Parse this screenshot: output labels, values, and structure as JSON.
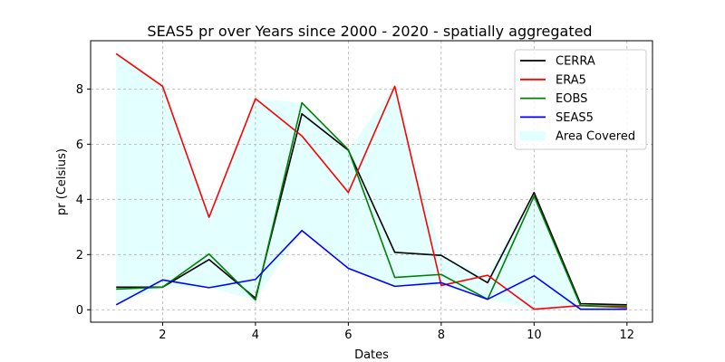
{
  "chart_data": {
    "type": "line",
    "title": "SEAS5 pr over Years since 2000 - 2020 - spatially aggregated",
    "xlabel": "Dates",
    "ylabel": "pr (Celsius)",
    "x": [
      1,
      2,
      3,
      4,
      5,
      6,
      7,
      8,
      9,
      10,
      11,
      12
    ],
    "xlim": [
      0.45,
      12.55
    ],
    "ylim": [
      -0.45,
      9.75
    ],
    "xticks": [
      2,
      4,
      6,
      8,
      10,
      12
    ],
    "yticks": [
      0,
      2,
      4,
      6,
      8
    ],
    "grid": true,
    "legend_position": "top-right",
    "series": [
      {
        "name": "CERRA",
        "color": "#000000",
        "values": [
          0.82,
          0.82,
          1.82,
          0.42,
          7.1,
          5.78,
          2.08,
          1.97,
          0.98,
          4.25,
          0.22,
          0.18
        ]
      },
      {
        "name": "ERA5",
        "color": "#ff0000",
        "values": [
          9.28,
          8.1,
          3.35,
          7.65,
          6.3,
          4.25,
          8.1,
          0.88,
          1.25,
          0.02,
          0.15,
          0.08
        ]
      },
      {
        "name": "EOBS",
        "color": "#008000",
        "values": [
          0.75,
          0.82,
          2.02,
          0.35,
          7.5,
          5.8,
          1.17,
          1.28,
          0.38,
          4.12,
          0.15,
          0.12
        ]
      },
      {
        "name": "SEAS5",
        "color": "#0000ff",
        "values": [
          0.18,
          1.08,
          0.8,
          1.1,
          2.87,
          1.5,
          0.85,
          0.98,
          0.38,
          1.23,
          0.02,
          0.02
        ]
      }
    ],
    "area": {
      "name": "Area Covered",
      "color": "#e0ffff"
    }
  }
}
